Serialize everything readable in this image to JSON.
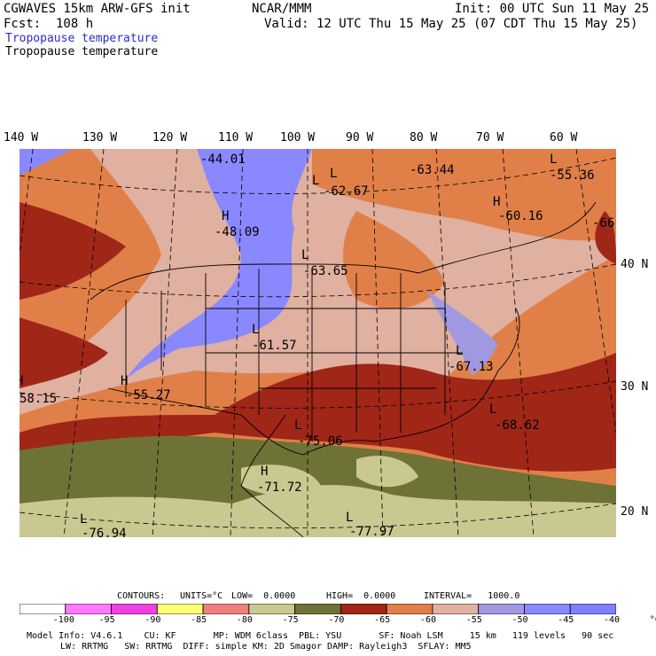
{
  "header": {
    "title": "CGWAVES 15km ARW-GFS init",
    "fcst": "Fcst:  108 h",
    "field_blue": "Tropopause temperature",
    "field_black": "Tropopause temperature",
    "org": "NCAR/MMM",
    "init": "Init: 00 UTC Sun 11 May 25",
    "valid": "Valid: 12 UTC Thu 15 May 25 (07 CDT Thu 15 May 25)"
  },
  "lon_labels": [
    "140 W",
    "130 W",
    "120 W",
    "110 W",
    "100 W",
    "90 W",
    "80 W",
    "70 W",
    "60 W"
  ],
  "lat_labels": [
    "40 N",
    "30 N",
    "20 N"
  ],
  "map_labels": [
    {
      "t": "-44.01"
    },
    {
      "t": "L"
    },
    {
      "t": "-63.44"
    },
    {
      "t": "L"
    },
    {
      "t": "-62.67"
    },
    {
      "t": "L"
    },
    {
      "t": "-55.36"
    },
    {
      "t": "H"
    },
    {
      "t": "-60.16"
    },
    {
      "t": "H"
    },
    {
      "t": "-48.09"
    },
    {
      "t": "L"
    },
    {
      "t": "-63.65"
    },
    {
      "t": "L"
    },
    {
      "t": "-61.57"
    },
    {
      "t": "L"
    },
    {
      "t": "-67.13"
    },
    {
      "t": "H"
    },
    {
      "t": "58.15"
    },
    {
      "t": "H"
    },
    {
      "t": "-55.27"
    },
    {
      "t": "L"
    },
    {
      "t": "-75.06"
    },
    {
      "t": "L"
    },
    {
      "t": "-68.62"
    },
    {
      "t": "H"
    },
    {
      "t": "-71.72"
    },
    {
      "t": "L"
    },
    {
      "t": "-76.94"
    },
    {
      "t": "L"
    },
    {
      "t": "-77.97"
    },
    {
      "t": "-66"
    }
  ],
  "contour_info": {
    "contours": "CONTOURS:",
    "units": "UNITS=°C",
    "low": "LOW=  0.0000",
    "high": "HIGH=  0.0000",
    "interval": "INTERVAL=   1000.0"
  },
  "colorbar": {
    "colors": [
      "#ffffff",
      "#ff78ff",
      "#f040e0",
      "#ffff78",
      "#f08080",
      "#c8c890",
      "#6e7236",
      "#a02618",
      "#e08048",
      "#e0b0a0",
      "#a098e0",
      "#8a88ff",
      "#8080ff"
    ],
    "ticks": [
      "-100",
      "-95",
      "-90",
      "-85",
      "-80",
      "-75",
      "-70",
      "-65",
      "-60",
      "-55",
      "-50",
      "-45",
      "-40",
      "°C"
    ]
  },
  "model_info": {
    "line1": "Model Info: V4.6.1    CU: KF       MP: WDM 6class  PBL: YSU       SF: Noah LSM     15 km   119 levels   90 sec",
    "line2": "LW: RRTMG   SW: RRTMG  DIFF: simple KM: 2D Smagor DAMP: Rayleigh3  SFLAY: MM5"
  }
}
